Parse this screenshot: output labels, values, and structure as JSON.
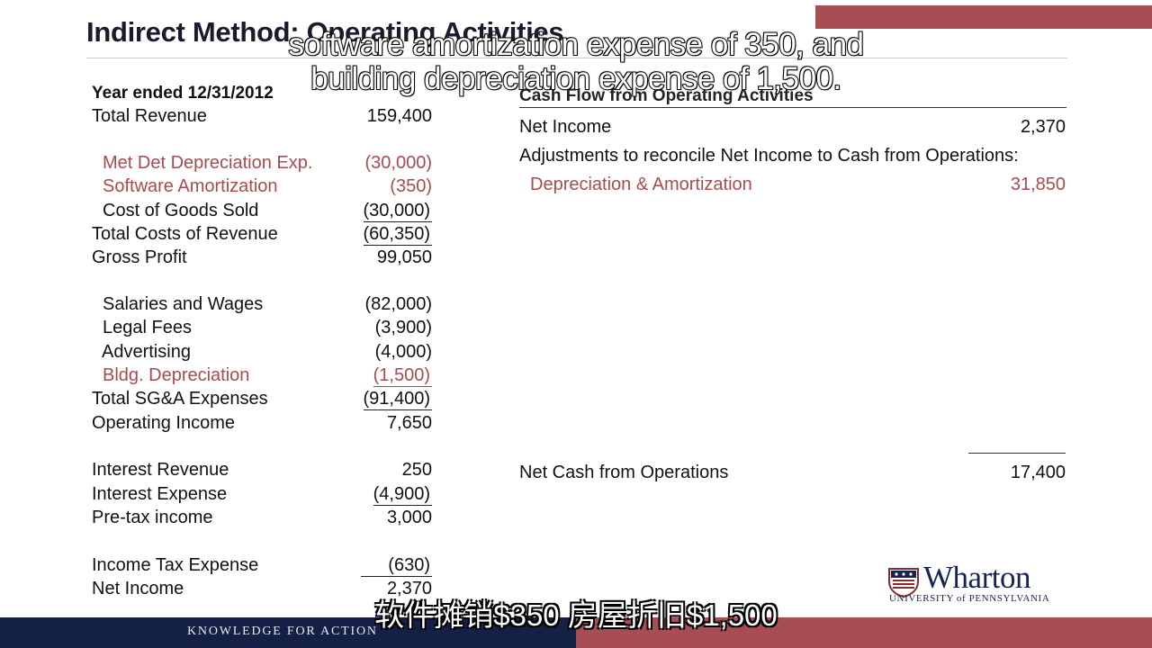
{
  "slide": {
    "title": "Indirect Method: Operating Activities"
  },
  "income_statement": {
    "header": "Year ended 12/31/2012",
    "rows": [
      {
        "label": "Total Revenue",
        "value": "159,400"
      },
      {
        "label": "Met Det Depreciation Exp.",
        "value": "(30,000)"
      },
      {
        "label": "Software Amortization",
        "value": "(350)"
      },
      {
        "label": "Cost of Goods Sold",
        "value": "(30,000)"
      },
      {
        "label": "Total Costs of Revenue",
        "value": "(60,350)"
      },
      {
        "label": "Gross Profit",
        "value": "99,050"
      },
      {
        "label": "Salaries and Wages",
        "value": "(82,000)"
      },
      {
        "label": "Legal Fees",
        "value": "(3,900)"
      },
      {
        "label": "Advertising",
        "value": "(4,000)"
      },
      {
        "label": "Bldg. Depreciation",
        "value": "(1,500)"
      },
      {
        "label": "Total SG&A Expenses",
        "value": "(91,400)"
      },
      {
        "label": "Operating Income",
        "value": "7,650"
      },
      {
        "label": "Interest Revenue",
        "value": "250"
      },
      {
        "label": "Interest Expense",
        "value": "(4,900)"
      },
      {
        "label": "Pre-tax income",
        "value": "3,000"
      },
      {
        "label": "Income Tax Expense",
        "value": "(630)"
      },
      {
        "label": "Net Income",
        "value": "2,370"
      }
    ]
  },
  "cash_flow": {
    "header": "Cash Flow from Operating Activities",
    "net_income_label": "Net Income",
    "net_income_value": "2,370",
    "adjustments_label": "Adjustments to reconcile Net Income to Cash from Operations:",
    "dep_amort_label": "Depreciation & Amortization",
    "dep_amort_value": "31,850",
    "net_cash_label": "Net Cash from Operations",
    "net_cash_value": "17,400"
  },
  "subtitles": {
    "en_line1": "software amortization expense of 350, and",
    "en_line2": "building depreciation expense of 1,500.",
    "cn": "软件摊销$350 房屋折旧$1,500"
  },
  "footer": {
    "tagline": "KNOWLEDGE FOR ACTION"
  },
  "logo": {
    "name": "Wharton",
    "subtitle": "UNIVERSITY of PENNSYLVANIA"
  },
  "colors": {
    "navy": "#142046",
    "burgundy": "#a74e55",
    "highlight_text": "#a84b4f"
  }
}
